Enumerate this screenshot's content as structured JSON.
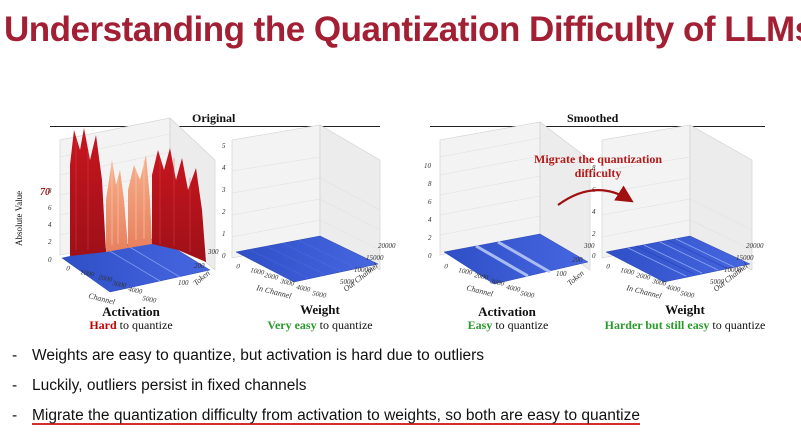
{
  "title": "Understanding the Quantization Difficulty of LLMs",
  "groups": {
    "original": "Original",
    "smoothed": "Smoothed"
  },
  "annotation": {
    "migrate": "Migrate the quantization difficulty",
    "outlier_value": "70"
  },
  "axes": {
    "z_label": "Absolute Value",
    "channel": "Channel",
    "token": "Token",
    "in_channel": "In Channel",
    "out_channel": "Out Channel",
    "z_ticks": [
      "10",
      "8",
      "6",
      "4",
      "2",
      "0"
    ],
    "z_ticks_weight": [
      "5",
      "4",
      "3",
      "2",
      "1",
      "0"
    ],
    "channel_ticks": [
      "0",
      "1000",
      "2000",
      "3000",
      "4000",
      "5000"
    ],
    "token_ticks": [
      "100",
      "200",
      "300"
    ],
    "out_ticks": [
      "5000",
      "10000",
      "15000",
      "20000"
    ]
  },
  "panels": [
    {
      "caption": "Activation",
      "status_strong": "Hard",
      "status_rest": " to quantize",
      "tone": "red"
    },
    {
      "caption": "Weight",
      "status_strong": "Very easy",
      "status_rest": " to quantize",
      "tone": "green"
    },
    {
      "caption": "Activation",
      "status_strong": "Easy",
      "status_rest": " to quantize",
      "tone": "green"
    },
    {
      "caption": "Weight",
      "status_strong": "Harder but still easy",
      "status_rest": " to quantize",
      "tone": "green"
    }
  ],
  "bullets": [
    "Weights are easy to quantize, but activation is hard due to outliers",
    "Luckily, outliers persist in fixed channels",
    "Migrate the quantization difficulty from activation to weights, so both are easy to quantize"
  ],
  "colors": {
    "title": "#a31f34",
    "surface_blue": "#3b5bdb",
    "outlier_red": "#b5121b",
    "highlight": "#c00000",
    "easy": "#2a9a2a"
  }
}
